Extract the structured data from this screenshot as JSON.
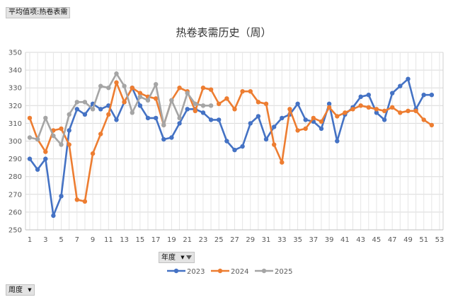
{
  "pivot": {
    "value_field": "平均值项:热卷表需",
    "series_field": "年度",
    "axis_field": "周度"
  },
  "icons": {
    "dropdown": "dropdown-caret-icon",
    "filter": "filter-funnel-icon"
  },
  "chart_data": {
    "type": "line",
    "title": "热卷表需历史（周）",
    "xlabel": "",
    "ylabel": "",
    "x_ticks": [
      1,
      3,
      5,
      7,
      9,
      11,
      13,
      15,
      17,
      19,
      21,
      23,
      25,
      27,
      29,
      31,
      33,
      35,
      37,
      39,
      41,
      43,
      45,
      47,
      49,
      51,
      53
    ],
    "xlim": [
      1,
      53
    ],
    "ylim": [
      250,
      350
    ],
    "y_ticks": [
      250,
      260,
      270,
      280,
      290,
      300,
      310,
      320,
      330,
      340,
      350
    ],
    "grid": true,
    "legend_position": "bottom",
    "series": [
      {
        "name": "2023",
        "color": "#4472C4",
        "x": [
          1,
          2,
          3,
          4,
          5,
          6,
          7,
          8,
          9,
          10,
          11,
          12,
          13,
          14,
          15,
          16,
          17,
          18,
          19,
          20,
          21,
          22,
          23,
          24,
          25,
          26,
          27,
          28,
          29,
          30,
          31,
          32,
          33,
          34,
          35,
          36,
          37,
          38,
          39,
          40,
          41,
          42,
          43,
          44,
          45,
          46,
          47,
          48,
          49,
          50,
          51,
          52
        ],
        "values": [
          290,
          284,
          290,
          258,
          269,
          306,
          318,
          315,
          321,
          318,
          320,
          312,
          322,
          330,
          320,
          313,
          313,
          301,
          302,
          310,
          318,
          318,
          316,
          312,
          312,
          300,
          295,
          297,
          310,
          314,
          301,
          308,
          313,
          315,
          321,
          312,
          311,
          307,
          321,
          300,
          315,
          319,
          325,
          326,
          316,
          312,
          327,
          331,
          335,
          318,
          326,
          326
        ]
      },
      {
        "name": "2024",
        "color": "#ED7D31",
        "x": [
          1,
          2,
          3,
          4,
          5,
          6,
          7,
          8,
          9,
          10,
          11,
          12,
          13,
          14,
          15,
          16,
          17,
          18,
          19,
          20,
          21,
          22,
          23,
          24,
          25,
          26,
          27,
          28,
          29,
          30,
          31,
          32,
          33,
          34,
          35,
          36,
          37,
          38,
          39,
          40,
          41,
          42,
          43,
          44,
          45,
          46,
          47,
          48,
          49,
          50,
          51,
          52
        ],
        "values": [
          313,
          301,
          294,
          306,
          307,
          298,
          267,
          266,
          293,
          304,
          315,
          333,
          322,
          330,
          327,
          325,
          324,
          309,
          323,
          330,
          328,
          317,
          330,
          329,
          321,
          324,
          318,
          328,
          328,
          322,
          321,
          298,
          288,
          318,
          306,
          307,
          313,
          311,
          319,
          314,
          316,
          318,
          320,
          319,
          318,
          317,
          319,
          316,
          317,
          317,
          312,
          309
        ]
      },
      {
        "name": "2025",
        "color": "#A5A5A5",
        "x": [
          1,
          2,
          3,
          4,
          5,
          6,
          7,
          8,
          9,
          10,
          11,
          12,
          13,
          14,
          15,
          16,
          17,
          18,
          19,
          20,
          21,
          22,
          23,
          24
        ],
        "values": [
          302,
          301,
          313,
          303,
          298,
          315,
          322,
          322,
          318,
          331,
          330,
          338,
          331,
          316,
          325,
          323,
          332,
          309,
          323,
          313,
          327,
          321,
          320,
          320
        ]
      }
    ]
  }
}
